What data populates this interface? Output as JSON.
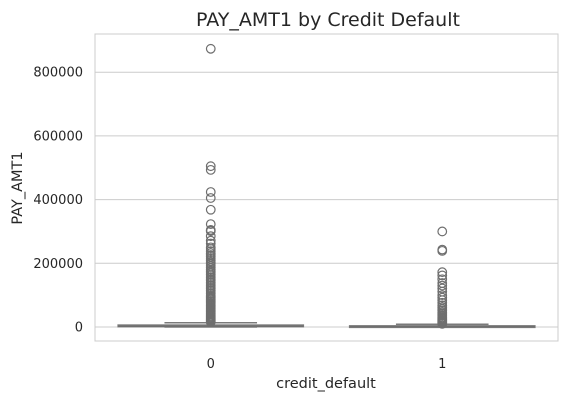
{
  "chart_data": {
    "type": "box",
    "title": "PAY_AMT1 by Credit Default",
    "xlabel": "credit_default",
    "ylabel": "PAY_AMT1",
    "categories": [
      "0",
      "1"
    ],
    "yticks": [
      0,
      200000,
      400000,
      600000,
      800000
    ],
    "ytick_labels": [
      "0",
      "200000",
      "400000",
      "600000",
      "800000"
    ],
    "ylim": [
      -44000,
      920000
    ],
    "grid": "horizontal",
    "colors": {
      "box_fill": "#808080",
      "box_edge": "#7a7a7a",
      "grid": "#cccccc",
      "spine": "#cccccc",
      "text": "#262626"
    },
    "boxes": [
      {
        "category": "0",
        "q1": 1000,
        "median": 2400,
        "q3": 6000,
        "whisker_low": 0,
        "whisker_high": 13500,
        "outliers": [
          873552,
          505000,
          493358,
          423903,
          405016,
          368199,
          323014,
          304815,
          302000,
          301000,
          285138,
          271000,
          262000,
          250000,
          245000,
          238000,
          232000,
          226000,
          220000,
          214000,
          208000,
          203000,
          198000,
          192000,
          186000,
          180000,
          175000,
          170000,
          165000,
          160000,
          155000,
          150000,
          145000,
          140000,
          135000,
          130000,
          125000,
          120000,
          115000,
          110000,
          105000,
          100000,
          96000,
          92000,
          88000,
          84000,
          80000,
          76000,
          72000,
          68000,
          64000,
          60000,
          56000,
          52000,
          48000,
          44000,
          40000,
          36000,
          33000,
          30000,
          27000,
          24000,
          21000,
          18000,
          15500
        ]
      },
      {
        "category": "1",
        "q1": 0,
        "median": 1600,
        "q3": 3500,
        "whisker_low": 0,
        "whisker_high": 8500,
        "outliers": [
          300000,
          243000,
          239000,
          172000,
          162000,
          150000,
          138000,
          130000,
          121000,
          111000,
          100000,
          92000,
          84000,
          76000,
          68000,
          62000,
          56000,
          51000,
          46000,
          42000,
          38000,
          34000,
          30000,
          27000,
          24000,
          21000,
          18000,
          15000,
          12500,
          10000
        ]
      }
    ]
  }
}
